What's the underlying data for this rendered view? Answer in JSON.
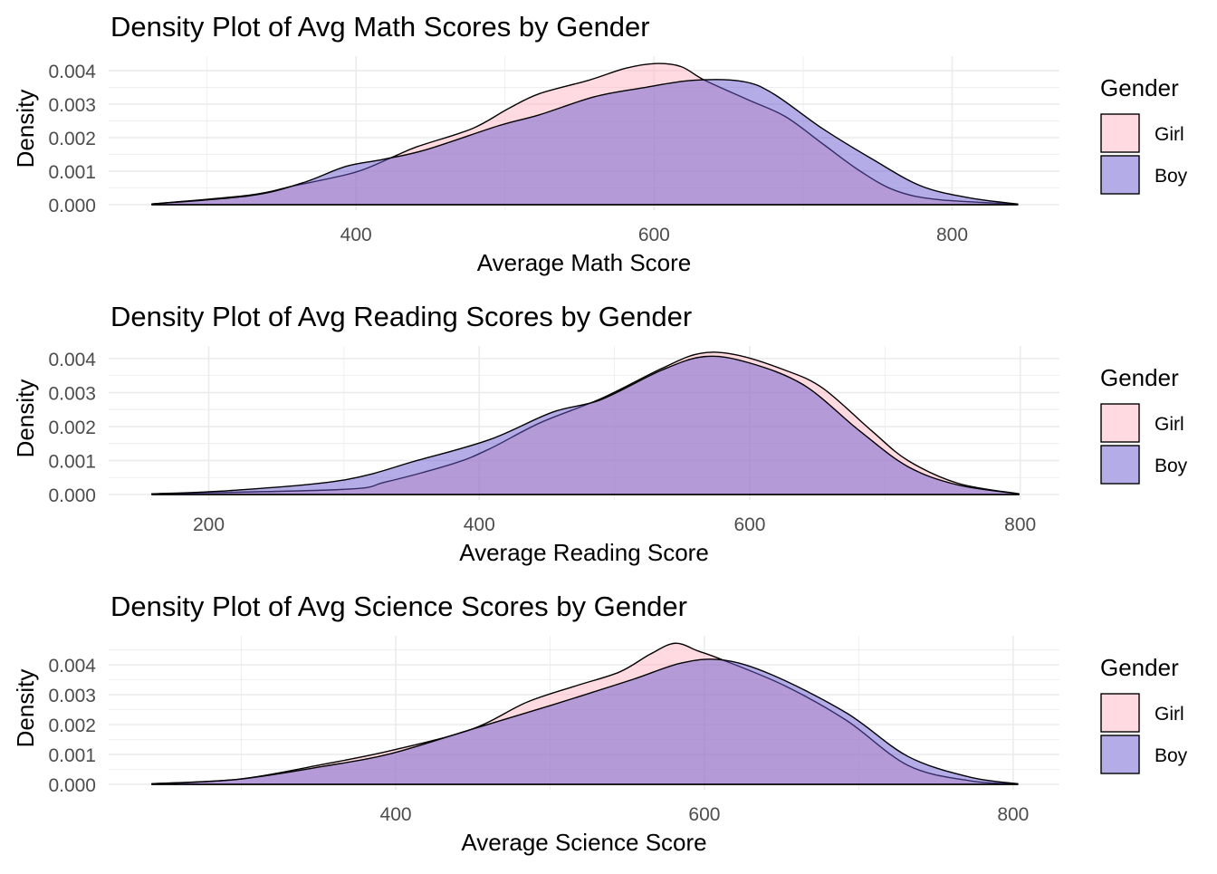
{
  "chart_data": [
    {
      "type": "area",
      "title": "Density Plot of Avg Math Scores by Gender",
      "xlabel": "Average Math Score",
      "ylabel": "Density",
      "xlim": [
        234,
        872
      ],
      "ylim": [
        0,
        0.00443
      ],
      "xticks": [
        400,
        600,
        800
      ],
      "yticks": [
        0,
        0.001,
        0.002,
        0.003,
        0.004
      ],
      "ytick_labels": [
        "0.000",
        "0.001",
        "0.002",
        "0.003",
        "0.004"
      ],
      "legend": {
        "title": "Gender",
        "position": "right"
      },
      "series": [
        {
          "name": "Girl",
          "color": "#FFB6C1",
          "x": [
            263,
            329,
            358,
            399,
            424,
            441,
            478,
            502,
            523,
            556,
            581,
            601,
            618,
            634,
            663,
            688,
            713,
            738,
            762,
            791,
            844
          ],
          "y": [
            2e-05,
            0.00029,
            0.00056,
            0.00096,
            0.00141,
            0.00173,
            0.00227,
            0.00286,
            0.00331,
            0.00371,
            0.00407,
            0.00421,
            0.00412,
            0.00371,
            0.00313,
            0.00263,
            0.00182,
            0.00101,
            0.00042,
            0.00015,
            2e-05
          ]
        },
        {
          "name": "Boy",
          "color": "#6A5ACD",
          "x": [
            263,
            329,
            364,
            393,
            418,
            447,
            496,
            523,
            560,
            593,
            626,
            659,
            680,
            713,
            746,
            779,
            812,
            844
          ],
          "y": [
            2e-05,
            0.00027,
            0.00065,
            0.00114,
            0.00135,
            0.00164,
            0.00236,
            0.00268,
            0.00322,
            0.00349,
            0.00371,
            0.00368,
            0.00331,
            0.00227,
            0.00137,
            0.00056,
            0.0002,
            2e-05
          ]
        }
      ]
    },
    {
      "type": "area",
      "title": "Density Plot of Avg Reading Scores by Gender",
      "xlabel": "Average Reading Score",
      "ylabel": "Density",
      "xlim": [
        126,
        829
      ],
      "ylim": [
        0,
        0.00437
      ],
      "xticks": [
        200,
        400,
        600,
        800
      ],
      "yticks": [
        0,
        0.001,
        0.002,
        0.003,
        0.004
      ],
      "ytick_labels": [
        "0.000",
        "0.001",
        "0.002",
        "0.003",
        "0.004"
      ],
      "legend": {
        "title": "Gender",
        "position": "right"
      },
      "series": [
        {
          "name": "Girl",
          "color": "#FFB6C1",
          "x": [
            158,
            299,
            331,
            381,
            408,
            445,
            490,
            535,
            563,
            590,
            626,
            654,
            690,
            717,
            754,
            799
          ],
          "y": [
            2e-05,
            0.00015,
            0.00037,
            0.00091,
            0.00135,
            0.00211,
            0.00282,
            0.00371,
            0.00415,
            0.00411,
            0.00366,
            0.00313,
            0.00188,
            0.001,
            0.00033,
            2e-05
          ]
        },
        {
          "name": "Boy",
          "color": "#6A5ACD",
          "x": [
            158,
            217,
            299,
            354,
            408,
            454,
            490,
            535,
            567,
            599,
            640,
            681,
            717,
            754,
            799
          ],
          "y": [
            2e-05,
            0.00012,
            0.00042,
            0.001,
            0.00162,
            0.00242,
            0.00279,
            0.00366,
            0.00406,
            0.00388,
            0.00322,
            0.00188,
            0.00082,
            0.00028,
            2e-05
          ]
        }
      ]
    },
    {
      "type": "area",
      "title": "Density Plot of Avg Science Scores by Gender",
      "xlabel": "Average Science Score",
      "ylabel": "Density",
      "xlim": [
        214,
        830
      ],
      "ylim": [
        0,
        0.00497
      ],
      "xticks": [
        400,
        600,
        800
      ],
      "yticks": [
        0,
        0.001,
        0.002,
        0.003,
        0.004
      ],
      "ytick_labels": [
        "0.000",
        "0.001",
        "0.002",
        "0.003",
        "0.004"
      ],
      "legend": {
        "title": "Gender",
        "position": "right"
      },
      "series": [
        {
          "name": "Girl",
          "color": "#FFB6C1",
          "x": [
            242,
            298,
            354,
            397,
            449,
            485,
            517,
            545,
            565,
            581,
            596,
            612,
            652,
            692,
            732,
            772,
            803
          ],
          "y": [
            2e-05,
            0.00017,
            0.00068,
            0.00113,
            0.00184,
            0.00275,
            0.0033,
            0.00376,
            0.00436,
            0.00472,
            0.00446,
            0.00416,
            0.0033,
            0.00214,
            0.00063,
            0.00012,
            2e-05
          ]
        },
        {
          "name": "Boy",
          "color": "#6A5ACD",
          "x": [
            242,
            298,
            354,
            397,
            449,
            501,
            553,
            585,
            612,
            644,
            692,
            732,
            772,
            803
          ],
          "y": [
            2e-05,
            0.00017,
            0.00061,
            0.00103,
            0.00184,
            0.00265,
            0.0035,
            0.00406,
            0.00416,
            0.00366,
            0.00239,
            0.00093,
            0.00024,
            2e-05
          ]
        }
      ]
    }
  ]
}
